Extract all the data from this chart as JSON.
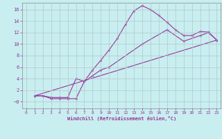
{
  "xlabel": "Windchill (Refroidissement éolien,°C)",
  "background_color": "#c8eef0",
  "line_color": "#993399",
  "grid_color": "#b0c8cc",
  "xlim": [
    -0.5,
    23.5
  ],
  "ylim": [
    -1.2,
    17.2
  ],
  "xticks": [
    0,
    1,
    2,
    3,
    4,
    5,
    6,
    7,
    8,
    9,
    10,
    11,
    12,
    13,
    14,
    15,
    16,
    17,
    18,
    19,
    20,
    21,
    22,
    23
  ],
  "yticks": [
    0,
    2,
    4,
    6,
    8,
    10,
    12,
    14,
    16
  ],
  "ytick_labels": [
    "−0",
    "2",
    "4",
    "6",
    "8",
    "10",
    "12",
    "14",
    "16"
  ],
  "line1_x": [
    1,
    2,
    3,
    4,
    5,
    6,
    7,
    8,
    9,
    10,
    11,
    12,
    13,
    14,
    15,
    16,
    17,
    18,
    19,
    20,
    21,
    22,
    23
  ],
  "line1_y": [
    1,
    1,
    0.5,
    0.5,
    0.5,
    0.5,
    3.5,
    5.5,
    7.2,
    9.0,
    11.0,
    13.5,
    15.8,
    16.7,
    16.0,
    15.0,
    13.8,
    12.5,
    11.5,
    11.5,
    12.2,
    12.1,
    10.7
  ],
  "line2_x": [
    1,
    2,
    3,
    4,
    5,
    6,
    7,
    8,
    9,
    10,
    14,
    17,
    19,
    21,
    22,
    23
  ],
  "line2_y": [
    1,
    1,
    0.7,
    0.7,
    0.7,
    4.0,
    3.5,
    4.5,
    5.5,
    6.0,
    10.0,
    12.5,
    10.5,
    11.5,
    12.0,
    10.7
  ],
  "line3_x": [
    1,
    23
  ],
  "line3_y": [
    1,
    10.7
  ],
  "figsize": [
    3.2,
    2.0
  ],
  "dpi": 100
}
